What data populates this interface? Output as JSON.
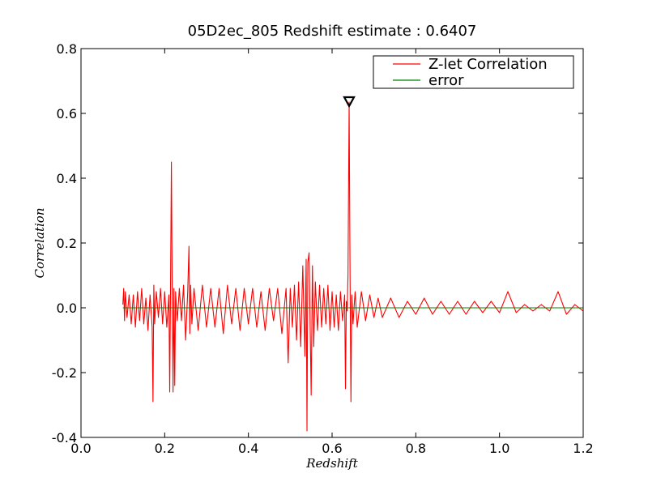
{
  "chart_data": {
    "type": "line",
    "title": "05D2ec_805 Redshift estimate : 0.6407",
    "xlabel": "Redshift",
    "ylabel": "Correlation",
    "xlim": [
      0.0,
      1.2
    ],
    "ylim": [
      -0.4,
      0.8
    ],
    "xticks": [
      "0.0",
      "0.2",
      "0.4",
      "0.6",
      "0.8",
      "1.0",
      "1.2"
    ],
    "yticks": [
      "-0.4",
      "-0.2",
      "0.0",
      "0.2",
      "0.4",
      "0.6",
      "0.8"
    ],
    "grid": false,
    "legend_position": "top-right",
    "marker": {
      "shape": "down-triangle",
      "x": 0.6407,
      "y": 0.635
    },
    "series": [
      {
        "name": "Z-let Correlation",
        "color": "#ff0000",
        "x": [
          0.1,
          0.102,
          0.104,
          0.106,
          0.11,
          0.115,
          0.12,
          0.125,
          0.13,
          0.135,
          0.14,
          0.145,
          0.15,
          0.155,
          0.16,
          0.165,
          0.17,
          0.172,
          0.174,
          0.176,
          0.18,
          0.185,
          0.19,
          0.195,
          0.2,
          0.205,
          0.21,
          0.212,
          0.214,
          0.216,
          0.218,
          0.22,
          0.222,
          0.224,
          0.226,
          0.23,
          0.235,
          0.24,
          0.245,
          0.25,
          0.255,
          0.258,
          0.26,
          0.262,
          0.265,
          0.27,
          0.28,
          0.29,
          0.3,
          0.31,
          0.32,
          0.33,
          0.34,
          0.35,
          0.36,
          0.37,
          0.38,
          0.39,
          0.4,
          0.41,
          0.42,
          0.43,
          0.44,
          0.45,
          0.46,
          0.47,
          0.48,
          0.49,
          0.495,
          0.5,
          0.505,
          0.51,
          0.515,
          0.52,
          0.525,
          0.53,
          0.535,
          0.538,
          0.54,
          0.542,
          0.545,
          0.55,
          0.553,
          0.556,
          0.56,
          0.565,
          0.57,
          0.575,
          0.58,
          0.585,
          0.59,
          0.595,
          0.6,
          0.605,
          0.61,
          0.615,
          0.62,
          0.625,
          0.63,
          0.632,
          0.634,
          0.636,
          0.638,
          0.6407,
          0.643,
          0.645,
          0.647,
          0.65,
          0.655,
          0.66,
          0.67,
          0.68,
          0.69,
          0.7,
          0.71,
          0.72,
          0.74,
          0.76,
          0.78,
          0.8,
          0.82,
          0.84,
          0.86,
          0.88,
          0.9,
          0.92,
          0.94,
          0.96,
          0.98,
          1.0,
          1.02,
          1.04,
          1.06,
          1.08,
          1.1,
          1.12,
          1.14,
          1.16,
          1.18,
          1.2
        ],
        "y": [
          0.01,
          0.06,
          -0.04,
          0.05,
          -0.03,
          0.04,
          -0.05,
          0.04,
          -0.06,
          0.05,
          -0.04,
          0.06,
          -0.05,
          0.03,
          -0.07,
          0.04,
          -0.06,
          -0.29,
          0.07,
          -0.05,
          0.05,
          -0.03,
          0.06,
          -0.05,
          0.05,
          -0.06,
          0.04,
          -0.26,
          0.08,
          0.45,
          0.05,
          -0.26,
          0.06,
          -0.24,
          0.05,
          -0.04,
          0.06,
          -0.04,
          0.07,
          -0.1,
          0.05,
          0.19,
          -0.08,
          0.07,
          -0.05,
          0.06,
          -0.07,
          0.07,
          -0.06,
          0.06,
          -0.06,
          0.06,
          -0.08,
          0.07,
          -0.05,
          0.06,
          -0.07,
          0.06,
          -0.05,
          0.06,
          -0.06,
          0.05,
          -0.07,
          0.06,
          -0.04,
          0.06,
          -0.08,
          0.06,
          -0.17,
          0.06,
          -0.06,
          0.07,
          -0.1,
          0.08,
          -0.12,
          0.13,
          -0.15,
          0.15,
          -0.38,
          0.14,
          0.17,
          -0.27,
          0.13,
          -0.12,
          0.08,
          -0.07,
          0.07,
          -0.06,
          0.06,
          -0.05,
          0.07,
          -0.07,
          0.05,
          -0.06,
          0.04,
          -0.07,
          0.05,
          -0.04,
          0.04,
          -0.25,
          0.02,
          -0.01,
          0.1,
          0.635,
          0.08,
          -0.29,
          0.04,
          -0.05,
          0.05,
          -0.06,
          0.05,
          -0.04,
          0.04,
          -0.03,
          0.03,
          -0.03,
          0.03,
          -0.03,
          0.02,
          -0.02,
          0.03,
          -0.02,
          0.02,
          -0.02,
          0.02,
          -0.02,
          0.02,
          -0.015,
          0.02,
          -0.015,
          0.05,
          -0.015,
          0.01,
          -0.01,
          0.01,
          -0.01,
          0.05,
          -0.02,
          0.01,
          -0.01
        ]
      },
      {
        "name": "error",
        "color": "#008000",
        "x": [
          0.1,
          1.2
        ],
        "y": [
          0.0,
          0.0
        ]
      }
    ]
  }
}
